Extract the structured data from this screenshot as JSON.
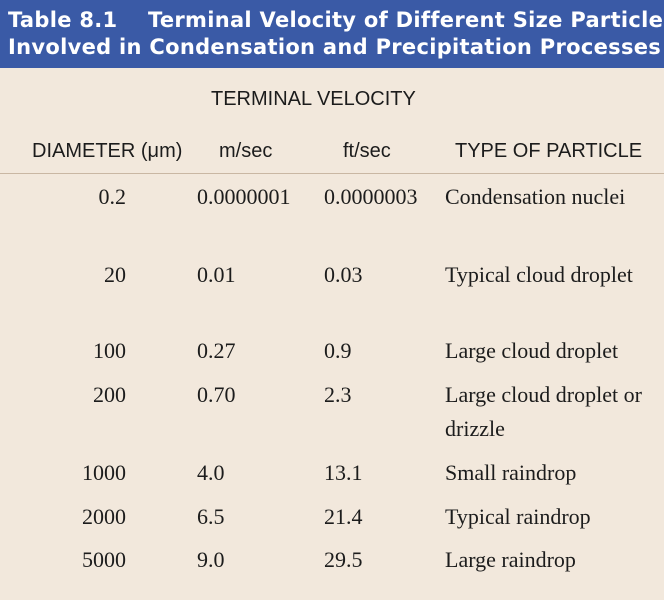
{
  "title": {
    "number": "Table 8.1",
    "line1": "Terminal Velocity of Different Size Particles",
    "line2": "Involved in Condensation and Precipitation Processes"
  },
  "headers": {
    "terminal_velocity": "TERMINAL VELOCITY",
    "diameter": "DIAMETER (μm)",
    "m_per_sec": "m/sec",
    "ft_per_sec": "ft/sec",
    "type_of_particle": "TYPE OF PARTICLE"
  },
  "rows": [
    {
      "diameter": "0.2",
      "m_sec": "0.0000001",
      "ft_sec": "0.0000003",
      "type": "Condensation nuclei"
    },
    {
      "diameter": "20",
      "m_sec": "0.01",
      "ft_sec": "0.03",
      "type": "Typical cloud droplet"
    },
    {
      "diameter": "100",
      "m_sec": "0.27",
      "ft_sec": "0.9",
      "type": "Large cloud droplet"
    },
    {
      "diameter": "200",
      "m_sec": "0.70",
      "ft_sec": "2.3",
      "type": "Large cloud droplet or drizzle"
    },
    {
      "diameter": "1000",
      "m_sec": "4.0",
      "ft_sec": "13.1",
      "type": "Small raindrop"
    },
    {
      "diameter": "2000",
      "m_sec": "6.5",
      "ft_sec": "21.4",
      "type": "Typical raindrop"
    },
    {
      "diameter": "5000",
      "m_sec": "9.0",
      "ft_sec": "29.5",
      "type": "Large raindrop"
    }
  ],
  "colors": {
    "title_bar": "#3a5aa6",
    "background": "#f2e8dc"
  }
}
